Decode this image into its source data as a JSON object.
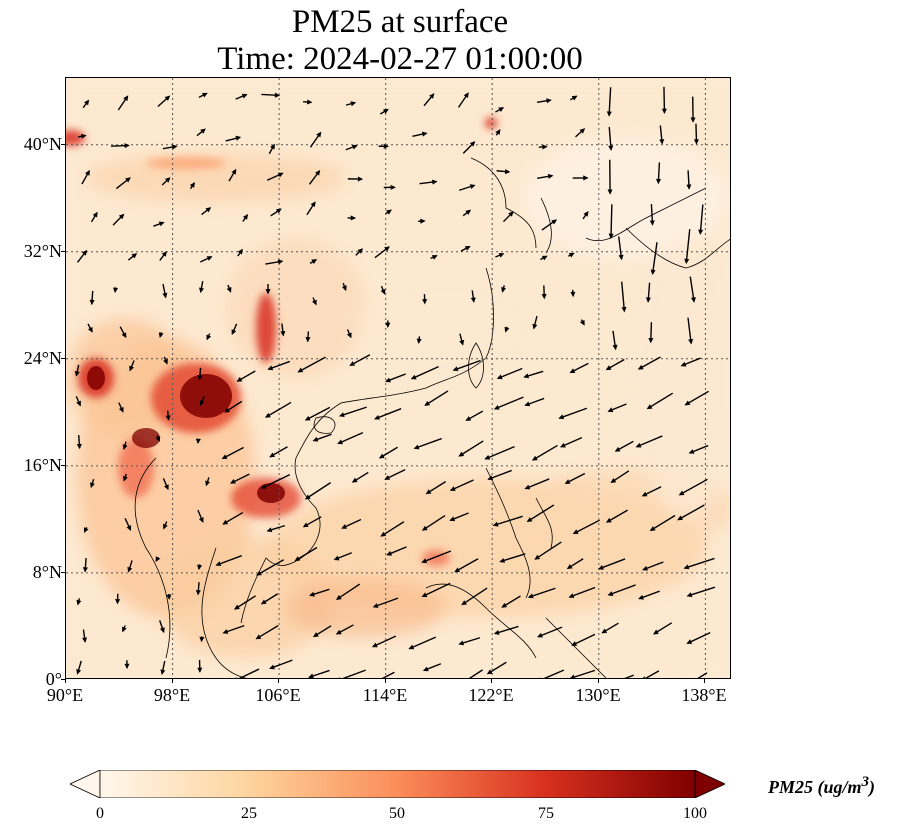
{
  "title": {
    "line1": "PM25 at surface",
    "line2": "Time: 2024-02-27 01:00:00"
  },
  "map": {
    "extent": {
      "lon_min": 90,
      "lon_max": 140,
      "lat_min": 0,
      "lat_max": 45
    },
    "lat_ticks": [
      "0°",
      "8°N",
      "16°N",
      "24°N",
      "32°N",
      "40°N"
    ],
    "lon_ticks": [
      "90°E",
      "98°E",
      "106°E",
      "114°E",
      "122°E",
      "130°E",
      "138°E"
    ],
    "gridlines": "dotted",
    "coastlines": true,
    "wind_vectors": true
  },
  "colorbar": {
    "colormap": "OrRd",
    "ticks": [
      "0",
      "25",
      "50",
      "75",
      "100"
    ],
    "label": "PM25 (ug/m",
    "label_sup": "3",
    "label_end": ")",
    "extend": "both",
    "colors": [
      "#fff7ec",
      "#fdd49e",
      "#fc8d59",
      "#d7301f",
      "#7f0000"
    ]
  }
}
